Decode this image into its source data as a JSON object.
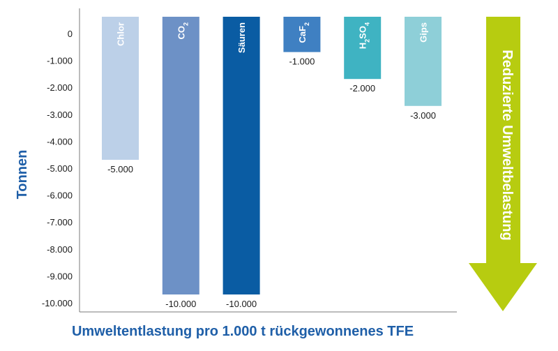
{
  "chart_data": {
    "type": "bar",
    "categories": [
      {
        "base": "Chlor",
        "sub": ""
      },
      {
        "base": "CO",
        "sub": "2"
      },
      {
        "base": "Säuren",
        "sub": ""
      },
      {
        "base": "CaF",
        "sub": "2"
      },
      {
        "base": "H",
        "sub": "2",
        "base2": "SO",
        "sub2": "4"
      },
      {
        "base": "Gips",
        "sub": ""
      }
    ],
    "values": [
      -5000,
      -10000,
      -10000,
      -1000,
      -2000,
      -3000
    ],
    "data_labels": [
      "-5.000",
      "-10.000",
      "-10.000",
      "-1.000",
      "-2.000",
      "-3.000"
    ],
    "colors": [
      "#bcd0e8",
      "#6d91c6",
      "#0a5ca3",
      "#3f80c2",
      "#3fb3c2",
      "#8ecfd8"
    ],
    "ylabel": "Tonnen",
    "xlabel": "Umweltentlastung pro 1.000 t rückgewonnenes TFE",
    "ylim": [
      -10000,
      0
    ],
    "yticks": [
      0,
      -1000,
      -2000,
      -3000,
      -4000,
      -5000,
      -6000,
      -7000,
      -8000,
      -9000,
      -10000
    ],
    "ytick_labels": [
      "0",
      "-1.000",
      "-2.000",
      "-3.000",
      "-4.000",
      "-5.000",
      "-6.000",
      "-7.000",
      "-8.000",
      "-9.000",
      "-10.000"
    ],
    "grid": false,
    "arrow_text": "Reduzierte Umweltbelastung",
    "arrow_color": "#b7cc10"
  }
}
